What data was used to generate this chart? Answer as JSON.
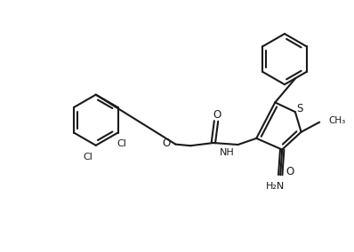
{
  "bg_color": "#ffffff",
  "line_color": "#1a1a1a",
  "line_width": 1.5,
  "figsize": [
    3.98,
    2.84
  ],
  "dpi": 100,
  "xlim": [
    0,
    10
  ],
  "ylim": [
    0,
    7.1
  ]
}
